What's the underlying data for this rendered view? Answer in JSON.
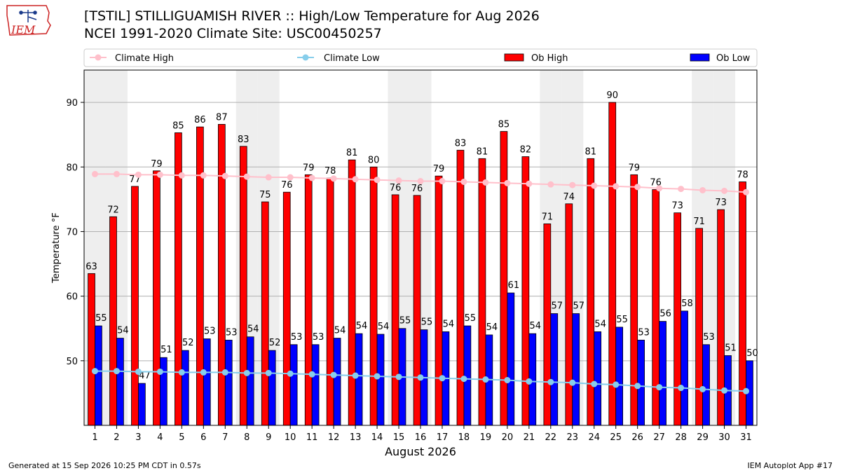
{
  "header": {
    "title_line1": "[TSTIL] STILLIGUAMISH RIVER :: High/Low Temperature for Aug 2026",
    "title_line2": "NCEI 1991-2020 Climate Site: USC00450257",
    "logo_text": "IEM"
  },
  "footer": {
    "left": "Generated at 15 Sep 2026 10:25 PM CDT in 0.57s",
    "right": "IEM Autoplot App #17"
  },
  "colors": {
    "ob_high": "#ff0000",
    "ob_low": "#0000ff",
    "climate_high": "#ffc0cb",
    "climate_low": "#87ceeb",
    "weekend_shade": "#eeeeee",
    "logo": "#cc2222"
  },
  "chart_data": {
    "type": "bar",
    "xlabel": "August 2026",
    "ylabel": "Temperature °F",
    "ylim": [
      40,
      95
    ],
    "yticks": [
      50,
      60,
      70,
      80,
      90
    ],
    "grid": "horizontal",
    "legend_position": "top",
    "shaded_weekend_days": [
      1,
      2,
      8,
      9,
      15,
      16,
      22,
      23,
      29,
      30
    ],
    "categories": [
      "1",
      "2",
      "3",
      "4",
      "5",
      "6",
      "7",
      "8",
      "9",
      "10",
      "11",
      "12",
      "13",
      "14",
      "15",
      "16",
      "17",
      "18",
      "19",
      "20",
      "21",
      "22",
      "23",
      "24",
      "25",
      "26",
      "27",
      "28",
      "29",
      "30",
      "31"
    ],
    "series": [
      {
        "name": "Ob High",
        "kind": "bar",
        "values": [
          63.5,
          72.3,
          77,
          79.4,
          85.3,
          86.2,
          86.6,
          83.2,
          74.6,
          76.1,
          78.8,
          78.3,
          81.1,
          80,
          75.7,
          75.6,
          78.6,
          82.6,
          81.3,
          85.5,
          81.6,
          71.2,
          74.3,
          81.3,
          90,
          78.8,
          76.5,
          72.9,
          70.5,
          73.4,
          77.7
        ],
        "labels": [
          "63",
          "72",
          "77",
          "79",
          "85",
          "86",
          "87",
          "83",
          "75",
          "76",
          "79",
          "78",
          "81",
          "80",
          "76",
          "76",
          "79",
          "83",
          "81",
          "85",
          "82",
          "71",
          "74",
          "81",
          "90",
          "79",
          "76",
          "73",
          "71",
          "73",
          "78"
        ]
      },
      {
        "name": "Ob Low",
        "kind": "bar",
        "values": [
          55.4,
          53.5,
          46.5,
          50.5,
          51.6,
          53.4,
          53.2,
          53.7,
          51.6,
          52.5,
          52.5,
          53.5,
          54.2,
          54.1,
          55,
          54.8,
          54.5,
          55.4,
          54,
          60.5,
          54.2,
          57.3,
          57.3,
          54.5,
          55.2,
          53.2,
          56.1,
          57.7,
          52.5,
          50.8,
          50
        ],
        "labels": [
          "55",
          "54",
          "47",
          "51",
          "52",
          "53",
          "53",
          "54",
          "52",
          "53",
          "53",
          "54",
          "54",
          "54",
          "55",
          "55",
          "54",
          "55",
          "54",
          "61",
          "54",
          "57",
          "57",
          "54",
          "55",
          "53",
          "56",
          "58",
          "53",
          "51",
          "50"
        ]
      },
      {
        "name": "Climate High",
        "kind": "line",
        "values": [
          78.9,
          78.9,
          78.8,
          78.8,
          78.7,
          78.7,
          78.6,
          78.5,
          78.4,
          78.4,
          78.3,
          78.2,
          78.1,
          78,
          77.9,
          77.8,
          77.8,
          77.7,
          77.6,
          77.5,
          77.4,
          77.3,
          77.2,
          77.1,
          77,
          76.9,
          76.7,
          76.6,
          76.4,
          76.3,
          76.1
        ]
      },
      {
        "name": "Climate Low",
        "kind": "line",
        "values": [
          48.4,
          48.4,
          48.3,
          48.3,
          48.2,
          48.2,
          48.2,
          48.1,
          48.1,
          48,
          47.9,
          47.8,
          47.7,
          47.6,
          47.5,
          47.4,
          47.3,
          47.2,
          47.1,
          47,
          46.8,
          46.7,
          46.6,
          46.4,
          46.3,
          46.1,
          45.9,
          45.8,
          45.6,
          45.4,
          45.3
        ]
      }
    ]
  }
}
